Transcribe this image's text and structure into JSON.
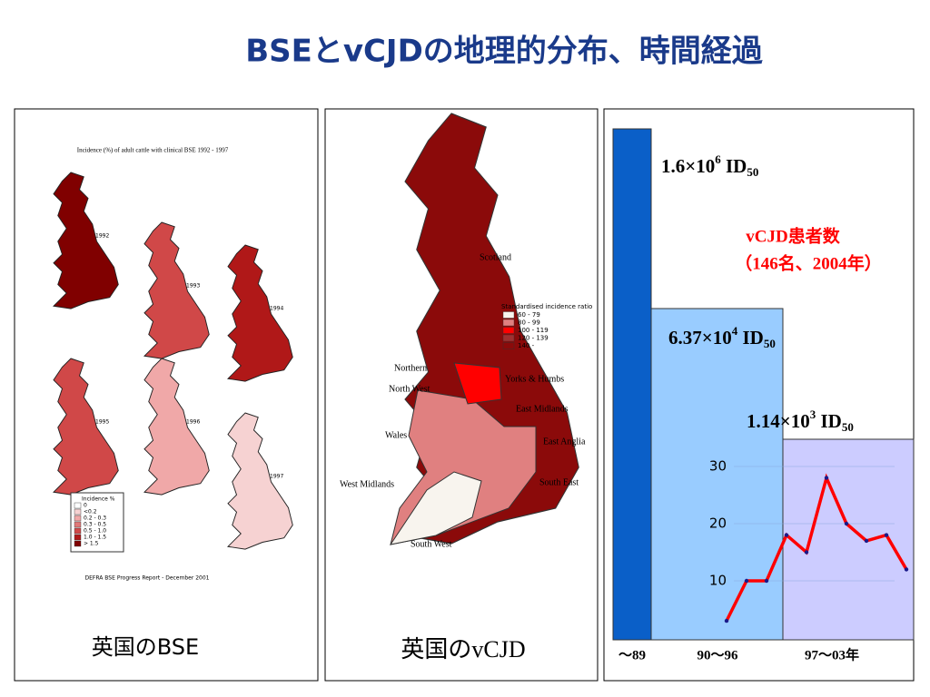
{
  "title": "BSEとvCJDの地理的分布、時間経過",
  "panel_bse": {
    "heading": "Incidence (%) of adult cattle with clinical BSE 1992 - 1997",
    "years": [
      "1992",
      "1993",
      "1994",
      "1995",
      "1996",
      "1997"
    ],
    "legend_title": "Incidence %",
    "legend": [
      "0",
      "<0.2",
      "0.2 - 0.3",
      "0.3 - 0.5",
      "0.5 - 1.0",
      "1.0 - 1.5",
      "> 1.5"
    ],
    "source": "DEFRA BSE Progress Report - December 2001",
    "caption": "英国のBSE"
  },
  "panel_vcjd": {
    "legend_title": "Standardised incidence ratio",
    "legend": [
      "60 - 79",
      "80 - 99",
      "100 - 119",
      "120 - 139",
      "140 -"
    ],
    "regions": [
      "Scotland",
      "Northern",
      "North West",
      "Yorks & Humbs",
      "East Midlands",
      "Wales",
      "East Anglia",
      "West Midlands",
      "South East",
      "South West"
    ],
    "caption": "英国のvCJD"
  },
  "chart_data": {
    "type": "line",
    "periods": [
      {
        "label": "～89",
        "annotation": {
          "base": "1.6×10",
          "exp": "6",
          "unit": " ID",
          "sub": "50"
        },
        "color": "#0a5fc8"
      },
      {
        "label": "90～96",
        "annotation": {
          "base": "6.37×10",
          "exp": "4",
          "unit": " ID",
          "sub": "50"
        },
        "color": "#99ccff"
      },
      {
        "label": "97～03年",
        "annotation": {
          "base": "1.14×10",
          "exp": "3",
          "unit": " ID",
          "sub": "50"
        },
        "color": "#ccccff"
      }
    ],
    "series_title": "vCJD患者数",
    "series_note": "（146名、2004年）",
    "categories": [
      null,
      null,
      null,
      null,
      null,
      null,
      null,
      null,
      null,
      null
    ],
    "values": [
      3,
      10,
      10,
      18,
      15,
      28,
      20,
      17,
      18,
      12
    ],
    "color": "#ff0000",
    "ylim": [
      0,
      32
    ],
    "yticks": [
      10,
      20,
      30
    ],
    "grid": true
  }
}
